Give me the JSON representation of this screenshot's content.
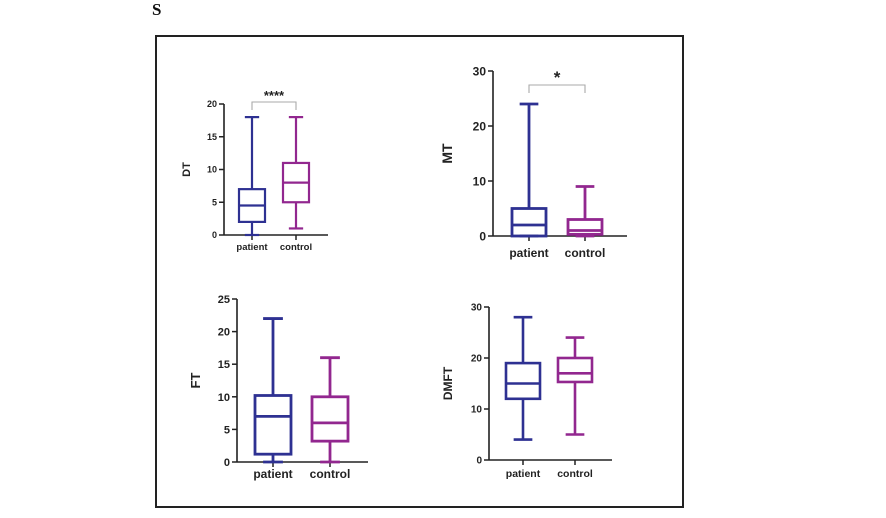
{
  "figure": {
    "letter": "S"
  },
  "colors": {
    "patient": "#2e3192",
    "control": "#92278f",
    "axis": "#222222",
    "bracket": "#aaaaaa"
  },
  "chart_data": [
    {
      "type": "boxplot",
      "panel": "top-left",
      "ylabel": "DT",
      "categories": [
        "patient",
        "control"
      ],
      "ylim": [
        0,
        20
      ],
      "yticks": [
        0,
        5,
        10,
        15,
        20
      ],
      "series": [
        {
          "name": "patient",
          "min": 0,
          "q1": 2,
          "median": 4.5,
          "q3": 7,
          "max": 18
        },
        {
          "name": "control",
          "min": 1,
          "q1": 5,
          "median": 8,
          "q3": 11,
          "max": 18
        }
      ],
      "significance": "****"
    },
    {
      "type": "boxplot",
      "panel": "top-right",
      "ylabel": "MT",
      "categories": [
        "patient",
        "control"
      ],
      "ylim": [
        0,
        30
      ],
      "yticks": [
        0,
        10,
        20,
        30
      ],
      "series": [
        {
          "name": "patient",
          "min": 0,
          "q1": 0,
          "median": 2,
          "q3": 5,
          "max": 24
        },
        {
          "name": "control",
          "min": 0,
          "q1": 0.3,
          "median": 1,
          "q3": 3,
          "max": 9
        }
      ],
      "significance": "*"
    },
    {
      "type": "boxplot",
      "panel": "bottom-left",
      "ylabel": "FT",
      "categories": [
        "patient",
        "control"
      ],
      "ylim": [
        0,
        25
      ],
      "yticks": [
        0,
        5,
        10,
        15,
        20,
        25
      ],
      "series": [
        {
          "name": "patient",
          "min": 0,
          "q1": 1.2,
          "median": 7,
          "q3": 10.2,
          "max": 22
        },
        {
          "name": "control",
          "min": 0,
          "q1": 3.2,
          "median": 6,
          "q3": 10,
          "max": 16
        }
      ],
      "significance": ""
    },
    {
      "type": "boxplot",
      "panel": "bottom-right",
      "ylabel": "DMFT",
      "categories": [
        "patient",
        "control"
      ],
      "ylim": [
        0,
        30
      ],
      "yticks": [
        0,
        10,
        20,
        30
      ],
      "series": [
        {
          "name": "patient",
          "min": 4,
          "q1": 12,
          "median": 15,
          "q3": 19,
          "max": 28
        },
        {
          "name": "control",
          "min": 5,
          "q1": 15.3,
          "median": 17,
          "q3": 20,
          "max": 24
        }
      ],
      "significance": ""
    }
  ]
}
